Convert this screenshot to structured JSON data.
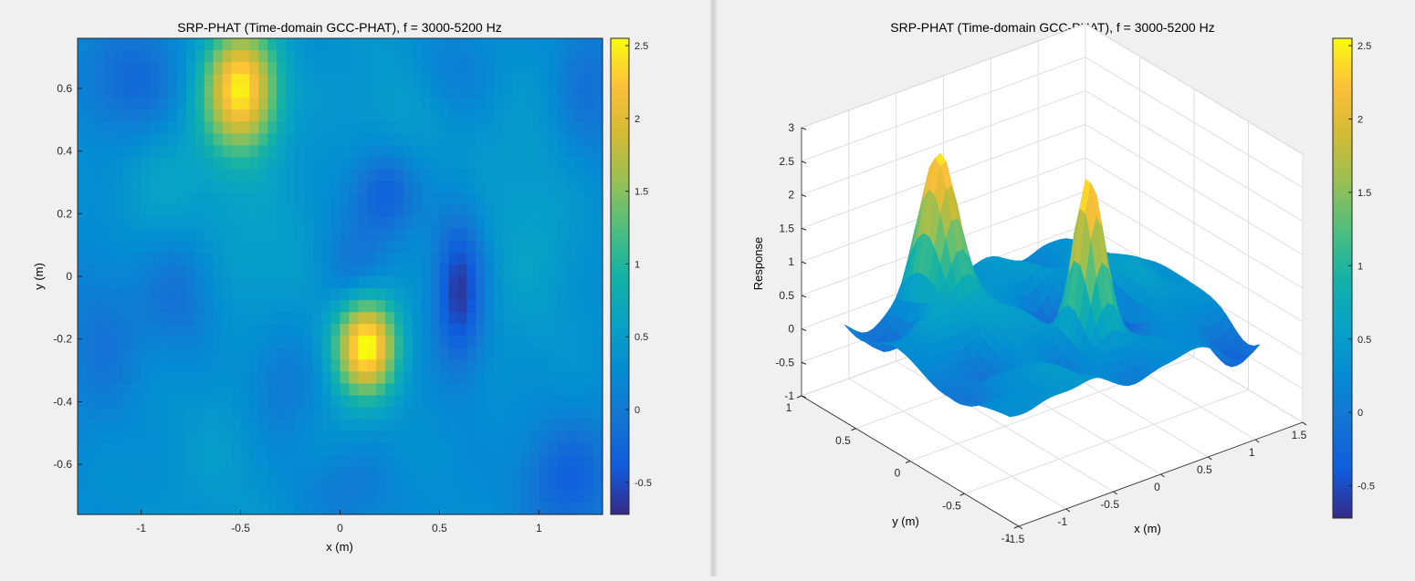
{
  "left_figure": {
    "title": "SRP-PHAT (Time-domain GCC-PHAT), f = 3000-5200 Hz",
    "xlabel": "x (m)",
    "ylabel": "y (m)",
    "x_ticks": [
      "-1",
      "-0.5",
      "0",
      "0.5",
      "1"
    ],
    "y_ticks": [
      "0.6",
      "0.4",
      "0.2",
      "0",
      "-0.2",
      "-0.4",
      "-0.6"
    ],
    "colorbar_ticks": [
      "2.5",
      "2",
      "1.5",
      "1",
      "0.5",
      "0",
      "-0.5"
    ]
  },
  "right_figure": {
    "title": "SRP-PHAT (Time-domain GCC-PHAT), f = 3000-5200 Hz",
    "xlabel": "x (m)",
    "ylabel": "y (m)",
    "zlabel": "Response",
    "x_ticks": [
      "-1.5",
      "-1",
      "-0.5",
      "0",
      "0.5",
      "1",
      "1.5"
    ],
    "y_ticks": [
      "1",
      "0.5",
      "0",
      "-0.5",
      "-1"
    ],
    "z_ticks": [
      "3",
      "2.5",
      "2",
      "1.5",
      "1",
      "0.5",
      "0",
      "-0.5",
      "-1"
    ],
    "colorbar_ticks": [
      "2.5",
      "2",
      "1.5",
      "1",
      "0.5",
      "0",
      "-0.5"
    ]
  },
  "chart_data": [
    {
      "type": "heatmap",
      "title": "SRP-PHAT (Time-domain GCC-PHAT), f = 3000-5200 Hz",
      "xlabel": "x (m)",
      "ylabel": "y (m)",
      "xlim": [
        -1.32,
        1.32
      ],
      "ylim": [
        -0.76,
        0.76
      ],
      "clim": [
        -0.72,
        2.55
      ],
      "colormap": "parula",
      "colorbar": true,
      "grid_size": [
        58,
        40
      ],
      "peaks": [
        {
          "x": -0.5,
          "y": 0.6,
          "value": 2.45
        },
        {
          "x": 0.13,
          "y": -0.22,
          "value": 2.55
        }
      ],
      "minima": [
        {
          "x": 0.6,
          "y": -0.05,
          "value": -0.7
        },
        {
          "x": 0.2,
          "y": 0.27,
          "value": -0.55
        },
        {
          "x": 1.15,
          "y": -0.65,
          "value": -0.55
        }
      ]
    },
    {
      "type": "surface",
      "title": "SRP-PHAT (Time-domain GCC-PHAT), f = 3000-5200 Hz",
      "xlabel": "x (m)",
      "ylabel": "y (m)",
      "zlabel": "Response",
      "xlim": [
        -1.5,
        1.5
      ],
      "ylim": [
        -1,
        1
      ],
      "zlim": [
        -1,
        3
      ],
      "colormap": "parula",
      "colorbar": true,
      "grid": true,
      "peaks": [
        {
          "x": -0.5,
          "y": 0.6,
          "value": 2.45
        },
        {
          "x": 0.13,
          "y": -0.22,
          "value": 2.55
        }
      ]
    }
  ]
}
